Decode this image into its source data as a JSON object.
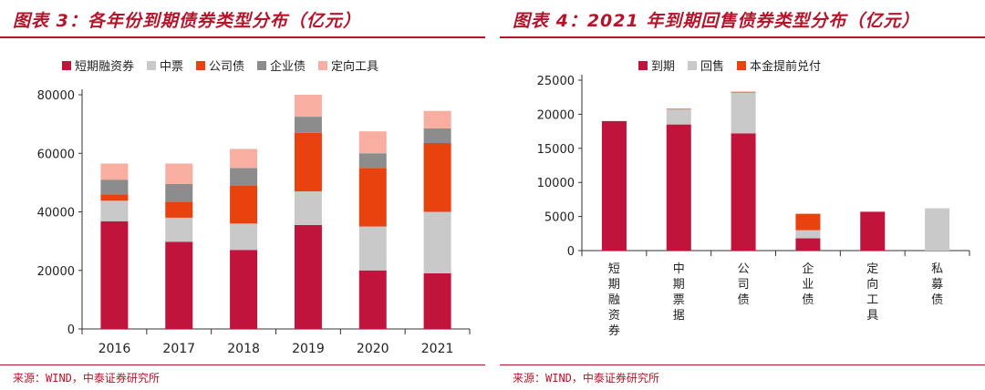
{
  "left": {
    "title": "图表 3：各年份到期债券类型分布（亿元）",
    "source": "来源：WIND，中泰证券研究所"
  },
  "right": {
    "title": "图表 4：2021 年到期回售债券类型分布（亿元）",
    "source": "来源：WIND，中泰证券研究所"
  },
  "chart_data": [
    {
      "type": "bar",
      "stacked": true,
      "title": "图表 3：各年份到期债券类型分布（亿元）",
      "categories": [
        "2016",
        "2017",
        "2018",
        "2019",
        "2020",
        "2021"
      ],
      "ylim": [
        0,
        80000
      ],
      "yticks": [
        0,
        20000,
        40000,
        60000,
        80000
      ],
      "legend_position": "top",
      "grid": false,
      "series": [
        {
          "name": "短期融资券",
          "color": "#c0143c",
          "values": [
            36800,
            29800,
            27000,
            35500,
            20000,
            19000
          ]
        },
        {
          "name": "中票",
          "color": "#c9c9c9",
          "values": [
            7000,
            8200,
            9000,
            11500,
            15000,
            21000
          ]
        },
        {
          "name": "公司债",
          "color": "#e8420f",
          "values": [
            2200,
            5500,
            13000,
            20000,
            20000,
            23500
          ]
        },
        {
          "name": "企业债",
          "color": "#8c8c8c",
          "values": [
            5000,
            6000,
            6000,
            5500,
            5000,
            5000
          ]
        },
        {
          "name": "定向工具",
          "color": "#f8aea0",
          "values": [
            5500,
            7000,
            6500,
            7500,
            7500,
            6000
          ]
        }
      ]
    },
    {
      "type": "bar",
      "stacked": true,
      "title": "图表 4：2021 年到期回售债券类型分布（亿元）",
      "categories": [
        "短期融资券",
        "中期票据",
        "公司债",
        "企业债",
        "定向工具",
        "私募债"
      ],
      "ylim": [
        0,
        25000
      ],
      "yticks": [
        0,
        5000,
        10000,
        15000,
        20000,
        25000
      ],
      "legend_position": "top",
      "grid": false,
      "series": [
        {
          "name": "到期",
          "color": "#c0143c",
          "values": [
            19000,
            18500,
            17200,
            1800,
            5700,
            0
          ]
        },
        {
          "name": "回售",
          "color": "#c9c9c9",
          "values": [
            0,
            2200,
            6000,
            1200,
            0,
            6200
          ]
        },
        {
          "name": "本金提前兑付",
          "color": "#e8420f",
          "values": [
            0,
            100,
            100,
            2400,
            0,
            0
          ]
        }
      ]
    }
  ]
}
